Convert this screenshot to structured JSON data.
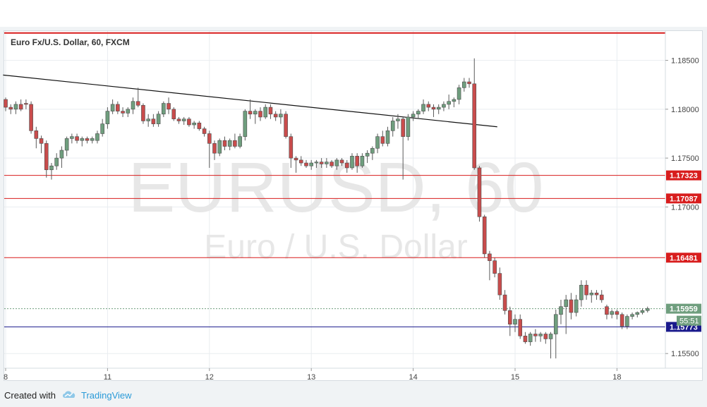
{
  "chart_data": {
    "type": "candlestick",
    "title": "Euro Fx/U.S. Dollar, 60, FXCM",
    "watermark": {
      "symbol": "EURUSD, 60",
      "description": "Euro / U.S. Dollar"
    },
    "x_ticks": [
      {
        "label": "8",
        "bar": 0
      },
      {
        "label": "11",
        "bar": 20
      },
      {
        "label": "12",
        "bar": 40
      },
      {
        "label": "13",
        "bar": 60
      },
      {
        "label": "14",
        "bar": 80
      },
      {
        "label": "15",
        "bar": 100
      },
      {
        "label": "18",
        "bar": 120
      }
    ],
    "ylim": [
      1.1535,
      1.188
    ],
    "y_ticks": [
      {
        "label": "1.18500",
        "value": 1.185
      },
      {
        "label": "1.18000",
        "value": 1.18
      },
      {
        "label": "1.17500",
        "value": 1.175
      },
      {
        "label": "1.17000",
        "value": 1.17
      },
      {
        "label": "1.15500",
        "value": 1.155
      }
    ],
    "candles": [
      [
        1.181,
        1.1812,
        1.1798,
        1.1802
      ],
      [
        1.1802,
        1.1805,
        1.1795,
        1.18
      ],
      [
        1.18,
        1.1808,
        1.1795,
        1.1805
      ],
      [
        1.1805,
        1.181,
        1.1798,
        1.18
      ],
      [
        1.1806,
        1.181,
        1.18,
        1.1805
      ],
      [
        1.1805,
        1.1808,
        1.1775,
        1.1778
      ],
      [
        1.1778,
        1.1782,
        1.176,
        1.177
      ],
      [
        1.177,
        1.1773,
        1.1755,
        1.1765
      ],
      [
        1.1765,
        1.1768,
        1.173,
        1.1738
      ],
      [
        1.1738,
        1.1745,
        1.1728,
        1.1742
      ],
      [
        1.1742,
        1.1755,
        1.1738,
        1.175
      ],
      [
        1.175,
        1.1762,
        1.174,
        1.1758
      ],
      [
        1.1758,
        1.1772,
        1.1752,
        1.177
      ],
      [
        1.177,
        1.1775,
        1.1765,
        1.1772
      ],
      [
        1.1772,
        1.1775,
        1.1765,
        1.1768
      ],
      [
        1.1768,
        1.1772,
        1.1762,
        1.177
      ],
      [
        1.177,
        1.1772,
        1.1765,
        1.1768
      ],
      [
        1.1768,
        1.1772,
        1.1765,
        1.177
      ],
      [
        1.1768,
        1.1778,
        1.1765,
        1.1775
      ],
      [
        1.1775,
        1.179,
        1.1772,
        1.1785
      ],
      [
        1.1785,
        1.1802,
        1.178,
        1.1798
      ],
      [
        1.1798,
        1.181,
        1.1795,
        1.1805
      ],
      [
        1.1805,
        1.1808,
        1.1795,
        1.1798
      ],
      [
        1.1798,
        1.1802,
        1.1792,
        1.1796
      ],
      [
        1.1796,
        1.1802,
        1.1792,
        1.18
      ],
      [
        1.18,
        1.1812,
        1.1795,
        1.1808
      ],
      [
        1.1808,
        1.1822,
        1.1802,
        1.1804
      ],
      [
        1.1804,
        1.1806,
        1.1785,
        1.1788
      ],
      [
        1.1788,
        1.1795,
        1.1782,
        1.179
      ],
      [
        1.179,
        1.1795,
        1.1782,
        1.1785
      ],
      [
        1.1785,
        1.1798,
        1.1782,
        1.1795
      ],
      [
        1.1795,
        1.1808,
        1.1792,
        1.1806
      ],
      [
        1.1806,
        1.1812,
        1.1795,
        1.18
      ],
      [
        1.18,
        1.1802,
        1.1788,
        1.179
      ],
      [
        1.179,
        1.1792,
        1.1785,
        1.1788
      ],
      [
        1.1788,
        1.1792,
        1.1784,
        1.179
      ],
      [
        1.179,
        1.1792,
        1.1782,
        1.1784
      ],
      [
        1.1784,
        1.1788,
        1.178,
        1.1786
      ],
      [
        1.1786,
        1.1788,
        1.1778,
        1.178
      ],
      [
        1.178,
        1.1782,
        1.1772,
        1.1775
      ],
      [
        1.1775,
        1.1778,
        1.174,
        1.1765
      ],
      [
        1.1765,
        1.1768,
        1.1748,
        1.1755
      ],
      [
        1.1755,
        1.177,
        1.1752,
        1.1768
      ],
      [
        1.1768,
        1.1772,
        1.1758,
        1.1762
      ],
      [
        1.1762,
        1.177,
        1.1758,
        1.1768
      ],
      [
        1.1768,
        1.1775,
        1.176,
        1.1762
      ],
      [
        1.1762,
        1.1775,
        1.176,
        1.1772
      ],
      [
        1.1772,
        1.18,
        1.1768,
        1.1798
      ],
      [
        1.1798,
        1.181,
        1.179,
        1.1795
      ],
      [
        1.1795,
        1.18,
        1.1785,
        1.1798
      ],
      [
        1.1798,
        1.1802,
        1.1788,
        1.1792
      ],
      [
        1.1792,
        1.1805,
        1.179,
        1.1802
      ],
      [
        1.1802,
        1.1805,
        1.179,
        1.1795
      ],
      [
        1.1795,
        1.1798,
        1.1788,
        1.1792
      ],
      [
        1.1792,
        1.18,
        1.1785,
        1.1795
      ],
      [
        1.1795,
        1.1798,
        1.177,
        1.1772
      ],
      [
        1.1772,
        1.1775,
        1.174,
        1.175
      ],
      [
        1.175,
        1.1752,
        1.1735,
        1.1748
      ],
      [
        1.1748,
        1.1752,
        1.1742,
        1.1745
      ],
      [
        1.1745,
        1.1748,
        1.174,
        1.1742
      ],
      [
        1.1742,
        1.1748,
        1.1738,
        1.1745
      ],
      [
        1.1745,
        1.1748,
        1.174,
        1.1746
      ],
      [
        1.1746,
        1.175,
        1.174,
        1.1744
      ],
      [
        1.1744,
        1.175,
        1.174,
        1.1746
      ],
      [
        1.1746,
        1.1748,
        1.174,
        1.1742
      ],
      [
        1.1742,
        1.175,
        1.1738,
        1.1748
      ],
      [
        1.1748,
        1.175,
        1.1742,
        1.1745
      ],
      [
        1.1745,
        1.1748,
        1.1735,
        1.174
      ],
      [
        1.174,
        1.1755,
        1.1738,
        1.1752
      ],
      [
        1.1752,
        1.1755,
        1.1735,
        1.1742
      ],
      [
        1.1742,
        1.1755,
        1.174,
        1.1752
      ],
      [
        1.1752,
        1.1758,
        1.1745,
        1.1755
      ],
      [
        1.1755,
        1.1762,
        1.1748,
        1.176
      ],
      [
        1.176,
        1.1775,
        1.1755,
        1.1772
      ],
      [
        1.1772,
        1.1778,
        1.1762,
        1.1765
      ],
      [
        1.1765,
        1.1782,
        1.1762,
        1.1778
      ],
      [
        1.1778,
        1.1792,
        1.1772,
        1.1788
      ],
      [
        1.1788,
        1.1795,
        1.178,
        1.179
      ],
      [
        1.179,
        1.1792,
        1.1728,
        1.1772
      ],
      [
        1.1772,
        1.1795,
        1.1768,
        1.1792
      ],
      [
        1.1792,
        1.1798,
        1.1788,
        1.1795
      ],
      [
        1.1795,
        1.18,
        1.179,
        1.1798
      ],
      [
        1.1798,
        1.181,
        1.1795,
        1.1805
      ],
      [
        1.1805,
        1.1808,
        1.1798,
        1.1802
      ],
      [
        1.1802,
        1.1805,
        1.1792,
        1.18
      ],
      [
        1.18,
        1.1805,
        1.1795,
        1.1802
      ],
      [
        1.1802,
        1.1808,
        1.1798,
        1.1805
      ],
      [
        1.1805,
        1.1815,
        1.18,
        1.1808
      ],
      [
        1.1808,
        1.1812,
        1.1802,
        1.181
      ],
      [
        1.181,
        1.1825,
        1.1805,
        1.1822
      ],
      [
        1.1822,
        1.1832,
        1.1818,
        1.1828
      ],
      [
        1.1828,
        1.1832,
        1.1822,
        1.1826
      ],
      [
        1.1826,
        1.1852,
        1.1738,
        1.174
      ],
      [
        1.174,
        1.1742,
        1.1685,
        1.169
      ],
      [
        1.169,
        1.1692,
        1.1648,
        1.1652
      ],
      [
        1.1652,
        1.1655,
        1.1625,
        1.1645
      ],
      [
        1.1645,
        1.1648,
        1.1628,
        1.1632
      ],
      [
        1.1632,
        1.1638,
        1.1605,
        1.161
      ],
      [
        1.161,
        1.1615,
        1.159,
        1.1594
      ],
      [
        1.1594,
        1.1598,
        1.1568,
        1.158
      ],
      [
        1.158,
        1.159,
        1.1572,
        1.1585
      ],
      [
        1.1585,
        1.159,
        1.1565,
        1.1568
      ],
      [
        1.1568,
        1.1572,
        1.156,
        1.1562
      ],
      [
        1.1562,
        1.1572,
        1.1558,
        1.157
      ],
      [
        1.157,
        1.1575,
        1.1562,
        1.1568
      ],
      [
        1.1568,
        1.1572,
        1.1562,
        1.157
      ],
      [
        1.157,
        1.1572,
        1.156,
        1.1565
      ],
      [
        1.1565,
        1.1572,
        1.1545,
        1.157
      ],
      [
        1.157,
        1.1595,
        1.1545,
        1.159
      ],
      [
        1.159,
        1.1605,
        1.158,
        1.1598
      ],
      [
        1.1598,
        1.161,
        1.157,
        1.1605
      ],
      [
        1.1605,
        1.1612,
        1.1585,
        1.1592
      ],
      [
        1.1592,
        1.161,
        1.1588,
        1.1605
      ],
      [
        1.1605,
        1.1625,
        1.1598,
        1.162
      ],
      [
        1.162,
        1.1625,
        1.1605,
        1.161
      ],
      [
        1.161,
        1.1615,
        1.1602,
        1.1612
      ],
      [
        1.1612,
        1.1615,
        1.1605,
        1.161
      ],
      [
        1.161,
        1.1615,
        1.1602,
        1.1605
      ],
      [
        1.1598,
        1.16,
        1.1585,
        1.159
      ],
      [
        1.159,
        1.1595,
        1.1586,
        1.1593
      ],
      [
        1.1593,
        1.1595,
        1.1585,
        1.159
      ],
      [
        1.159,
        1.1592,
        1.1575,
        1.1578
      ],
      [
        1.1578,
        1.159,
        1.1575,
        1.1588
      ],
      [
        1.1588,
        1.1592,
        1.1585,
        1.159
      ],
      [
        1.159,
        1.1593,
        1.1587,
        1.1592
      ],
      [
        1.1592,
        1.1596,
        1.159,
        1.1594
      ],
      [
        1.1594,
        1.1598,
        1.1592,
        1.1596
      ]
    ],
    "trendline": {
      "start": {
        "bar": -0.5,
        "value": 1.1835
      },
      "end": {
        "bar": 96.5,
        "value": 1.1782
      }
    },
    "horizontal_lines": [
      {
        "value": 1.1878,
        "color": "#d81d1d",
        "label": ""
      },
      {
        "value": 1.17323,
        "color": "#d81d1d",
        "label": "1.17323"
      },
      {
        "value": 1.17087,
        "color": "#d81d1d",
        "label": "1.17087"
      },
      {
        "value": 1.16481,
        "color": "#d81d1d",
        "label": "1.16481"
      },
      {
        "value": 1.15773,
        "color": "#1a1a8c",
        "label": "1.15773"
      }
    ],
    "current_price": {
      "value": 1.15959,
      "label": "1.15959",
      "countdown": "55:51",
      "color": "#6f9e7e"
    },
    "colors": {
      "up": "#6f9e7e",
      "down": "#c94c4c",
      "grid": "#e9edf0",
      "axis_text": "#444444",
      "watermark": "#e6e6e6"
    },
    "grid": true
  },
  "footer": {
    "created_with": "Created with",
    "brand": "TradingView",
    "logo_icon": "tradingview-cloud-icon"
  }
}
